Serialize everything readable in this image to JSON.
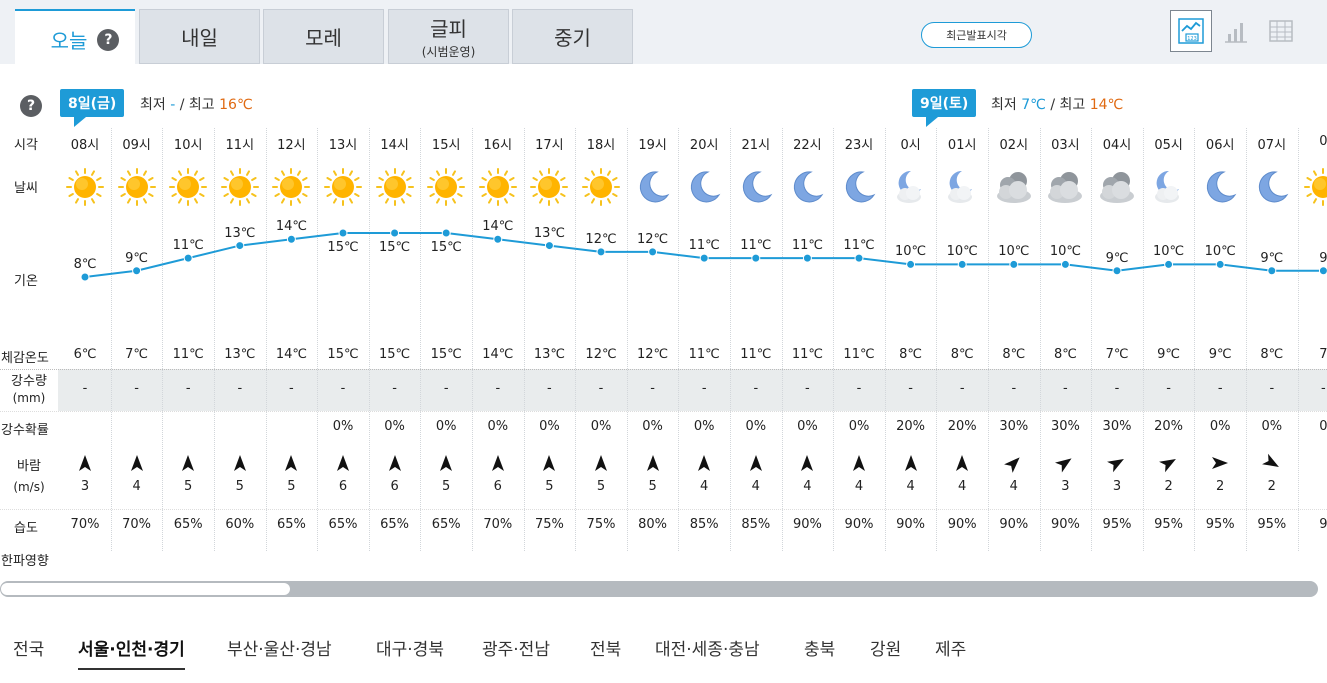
{
  "tabs": [
    {
      "label": "오늘",
      "sub": ""
    },
    {
      "label": "내일",
      "sub": ""
    },
    {
      "label": "모레",
      "sub": ""
    },
    {
      "label": "글피",
      "sub": "(시범운영)"
    },
    {
      "label": "중기",
      "sub": ""
    }
  ],
  "help_glyph": "?",
  "recent_button": "최근발표시각",
  "day1": {
    "badge": "8일(금)",
    "min_label": "최저",
    "min": "-",
    "sep": "/",
    "max_label": "최고",
    "max": "16℃"
  },
  "day2": {
    "badge": "9일(토)",
    "min_label": "최저",
    "min": "7℃",
    "sep": "/",
    "max_label": "최고",
    "max": "14℃"
  },
  "labels": {
    "time": "시각",
    "weather": "날씨",
    "temp": "기온",
    "feels": "체감온도",
    "precip": "강수량",
    "precip_unit": "(mm)",
    "prob": "강수확률",
    "wind": "바람",
    "wind_unit": "(m/s)",
    "humidity": "습도",
    "cold": "한파영향"
  },
  "hours": [
    "08시",
    "09시",
    "10시",
    "11시",
    "12시",
    "13시",
    "14시",
    "15시",
    "16시",
    "17시",
    "18시",
    "19시",
    "20시",
    "21시",
    "22시",
    "23시",
    "0시",
    "01시",
    "02시",
    "03시",
    "04시",
    "05시",
    "06시",
    "07시",
    "0"
  ],
  "weather_icons": [
    "sun",
    "sun",
    "sun",
    "sun",
    "sun",
    "sun",
    "sun",
    "sun",
    "sun",
    "sun",
    "sun",
    "moon",
    "moon",
    "moon",
    "moon",
    "moon",
    "moon-cloud",
    "moon-cloud",
    "cloudy",
    "cloudy",
    "cloudy",
    "moon-cloud",
    "moon",
    "moon",
    "sun"
  ],
  "temps": [
    8,
    9,
    11,
    13,
    14,
    15,
    15,
    15,
    14,
    13,
    12,
    12,
    11,
    11,
    11,
    11,
    10,
    10,
    10,
    10,
    9,
    10,
    10,
    9,
    9
  ],
  "temp_labels": [
    "8℃",
    "9℃",
    "11℃",
    "13℃",
    "14℃",
    "15℃",
    "15℃",
    "15℃",
    "14℃",
    "13℃",
    "12℃",
    "12℃",
    "11℃",
    "11℃",
    "11℃",
    "11℃",
    "10℃",
    "10℃",
    "10℃",
    "10℃",
    "9℃",
    "10℃",
    "10℃",
    "9℃",
    "9"
  ],
  "feels": [
    "6℃",
    "7℃",
    "11℃",
    "13℃",
    "14℃",
    "15℃",
    "15℃",
    "15℃",
    "14℃",
    "13℃",
    "12℃",
    "12℃",
    "11℃",
    "11℃",
    "11℃",
    "11℃",
    "8℃",
    "8℃",
    "8℃",
    "8℃",
    "7℃",
    "9℃",
    "9℃",
    "8℃",
    "7"
  ],
  "precip": [
    "-",
    "-",
    "-",
    "-",
    "-",
    "-",
    "-",
    "-",
    "-",
    "-",
    "-",
    "-",
    "-",
    "-",
    "-",
    "-",
    "-",
    "-",
    "-",
    "-",
    "-",
    "-",
    "-",
    "-",
    "-"
  ],
  "prob": [
    "",
    "",
    "",
    "",
    "",
    "0%",
    "0%",
    "0%",
    "0%",
    "0%",
    "0%",
    "0%",
    "0%",
    "0%",
    "0%",
    "0%",
    "20%",
    "20%",
    "30%",
    "30%",
    "30%",
    "20%",
    "0%",
    "0%",
    "0"
  ],
  "wind_dir_deg": [
    0,
    0,
    0,
    0,
    0,
    0,
    0,
    0,
    0,
    0,
    0,
    0,
    0,
    0,
    0,
    0,
    0,
    0,
    45,
    55,
    60,
    60,
    90,
    120,
    0
  ],
  "wind_speed": [
    "3",
    "4",
    "5",
    "5",
    "5",
    "6",
    "6",
    "5",
    "6",
    "5",
    "5",
    "5",
    "4",
    "4",
    "4",
    "4",
    "4",
    "4",
    "4",
    "3",
    "3",
    "2",
    "2",
    "2",
    ""
  ],
  "humidity": [
    "70%",
    "70%",
    "65%",
    "60%",
    "65%",
    "65%",
    "65%",
    "65%",
    "70%",
    "75%",
    "75%",
    "80%",
    "85%",
    "85%",
    "90%",
    "90%",
    "90%",
    "90%",
    "90%",
    "90%",
    "95%",
    "95%",
    "95%",
    "95%",
    "9"
  ],
  "regions": [
    "전국",
    "서울·인천·경기",
    "부산·울산·경남",
    "대구·경북",
    "광주·전남",
    "전북",
    "대전·세종·충남",
    "충북",
    "강원",
    "제주"
  ],
  "active_region": 1,
  "colors": {
    "accent": "#1e9bd7",
    "max_temp": "#e06a12",
    "sun": "#ffb400",
    "moon": "#6f9bd8",
    "cloud": "#9aa0a6"
  }
}
